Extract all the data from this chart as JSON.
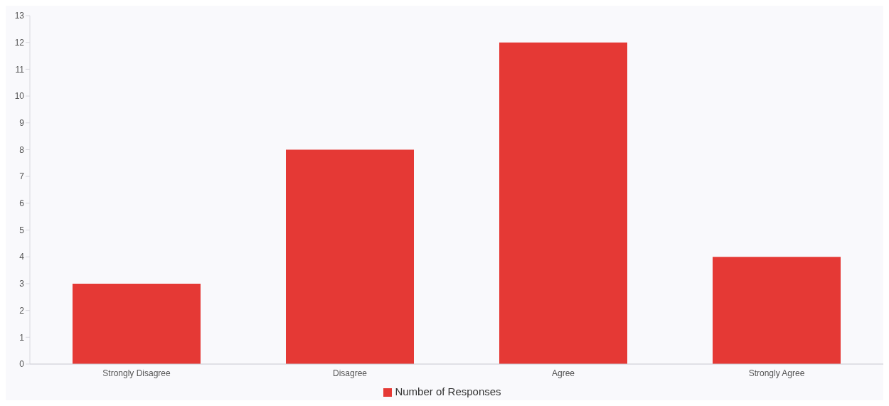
{
  "chart_data": {
    "type": "bar",
    "categories": [
      "Strongly Disagree",
      "Disagree",
      "Agree",
      "Strongly Agree"
    ],
    "series": [
      {
        "name": "Number of Responses",
        "color": "#e53935",
        "values": [
          3,
          8,
          12,
          4
        ]
      }
    ],
    "ylim": [
      0,
      13
    ],
    "yticks": [
      0,
      1,
      2,
      3,
      4,
      5,
      6,
      7,
      8,
      9,
      10,
      11,
      12,
      13
    ],
    "grid": false,
    "legend": "bottom"
  }
}
